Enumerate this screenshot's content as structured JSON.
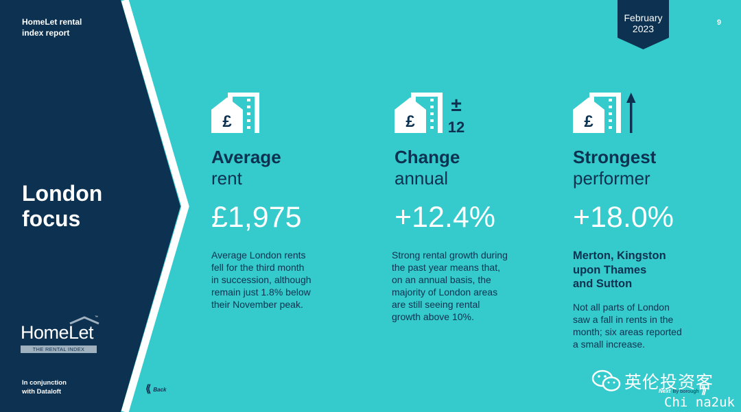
{
  "header": {
    "brand_line1": "HomeLet rental",
    "brand_line2": "index report",
    "date_line1": "February",
    "date_line2": "2023",
    "page_number": "9"
  },
  "sidebar": {
    "title_line1": "London",
    "title_line2": "focus",
    "logo_text": "HomeLet",
    "logo_tm": "™",
    "logo_subtitle": "THE RENTAL INDEX",
    "partner_line1": "In conjunction",
    "partner_line2": "with Dataloft"
  },
  "nav": {
    "back_label": "Back",
    "next_label": "Next",
    "next_sub": "By borough"
  },
  "colors": {
    "background": "#35cacb",
    "navy": "#0d3150",
    "white": "#ffffff"
  },
  "stats": [
    {
      "icon": "pound-house-icon",
      "heading": "Average",
      "subheading": "rent",
      "value": "£1,975",
      "description": [
        "Average London rents",
        "fell for the third month",
        "in succession, although",
        "remain just 1.8% below",
        "their November peak."
      ]
    },
    {
      "icon": "pound-house-plus-minus-12-icon",
      "icon_symbol": "±",
      "icon_number": "12",
      "heading": "Change",
      "subheading": "annual",
      "value": "+12.4%",
      "description": [
        "Strong rental growth during",
        "the past year means that,",
        "on an annual basis, the",
        "majority of London areas",
        "are still seeing rental",
        "growth above 10%."
      ]
    },
    {
      "icon": "pound-house-up-arrow-icon",
      "heading": "Strongest",
      "subheading": "performer",
      "value": "+18.0%",
      "highlight": [
        "Merton, Kingston",
        "upon Thames",
        "and Sutton"
      ],
      "description": [
        "Not all parts of London",
        "saw a fall in rents in the",
        "month; six areas reported",
        "a small increase."
      ]
    }
  ],
  "watermark": {
    "chinese_text": "英伦投资客",
    "latin_text": "Chi na2uk"
  }
}
